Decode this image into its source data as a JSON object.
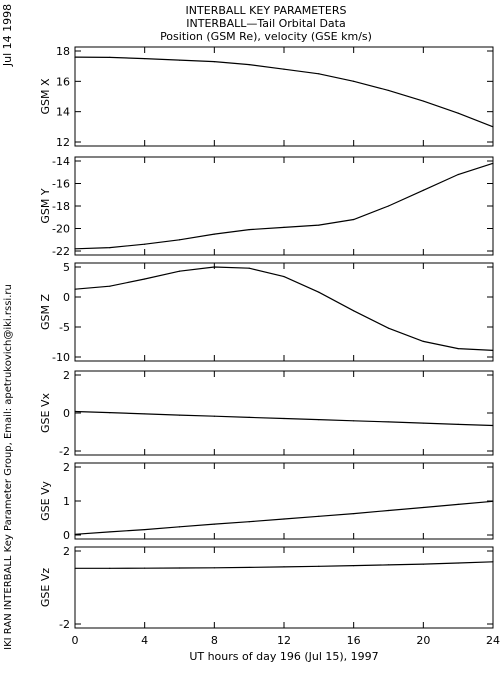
{
  "header": {
    "title_line1": "INTERBALL KEY PARAMETERS",
    "title_line2": "INTERBALL—Tail Orbital Data",
    "title_line3": "Position (GSM Re), velocity (GSE km/s)"
  },
  "side": {
    "date": "Jul 14 1998",
    "credit": "IKI RAN INTERBALL Key Parameter Group, Email: apetrukovich@iki.rssi.ru"
  },
  "chart_data": {
    "type": "line",
    "xlabel": "UT hours of day 196 (Jul 15), 1997",
    "xlim": [
      0,
      24
    ],
    "xticks": [
      0,
      4,
      8,
      12,
      16,
      20,
      24
    ],
    "x": [
      0,
      2,
      4,
      6,
      8,
      10,
      12,
      14,
      16,
      18,
      20,
      22,
      24
    ],
    "panels": [
      {
        "ylabel": "GSM X",
        "ylim": [
          12,
          18
        ],
        "yticks": [
          12,
          14,
          16,
          18
        ],
        "values": [
          17.6,
          17.58,
          17.5,
          17.4,
          17.3,
          17.1,
          16.8,
          16.5,
          16.0,
          15.4,
          14.7,
          13.9,
          13.0
        ]
      },
      {
        "ylabel": "GSM Y",
        "ylim": [
          -22,
          -14
        ],
        "yticks": [
          -22,
          -20,
          -18,
          -16,
          -14
        ],
        "values": [
          -21.8,
          -21.7,
          -21.4,
          -21.0,
          -20.5,
          -20.1,
          -19.9,
          -19.7,
          -19.2,
          -18.0,
          -16.6,
          -15.2,
          -14.2
        ]
      },
      {
        "ylabel": "GSM Z",
        "ylim": [
          -10,
          5
        ],
        "yticks": [
          -10,
          -5,
          0,
          5
        ],
        "values": [
          1.3,
          1.8,
          3.0,
          4.3,
          5.0,
          4.8,
          3.4,
          0.8,
          -2.3,
          -5.2,
          -7.4,
          -8.6,
          -8.9
        ]
      },
      {
        "ylabel": "GSE Vx",
        "ylim": [
          -2,
          2
        ],
        "yticks": [
          -2,
          0,
          2
        ],
        "values": [
          0.08,
          0.02,
          -0.05,
          -0.11,
          -0.17,
          -0.23,
          -0.29,
          -0.35,
          -0.41,
          -0.47,
          -0.53,
          -0.6,
          -0.66
        ]
      },
      {
        "ylabel": "GSE Vy",
        "ylim": [
          0,
          2
        ],
        "yticks": [
          0,
          1,
          2
        ],
        "values": [
          0.02,
          0.09,
          0.16,
          0.24,
          0.32,
          0.39,
          0.47,
          0.55,
          0.63,
          0.72,
          0.81,
          0.9,
          0.99
        ]
      },
      {
        "ylabel": "GSE Vz",
        "ylim": [
          -2,
          2
        ],
        "yticks": [
          -2,
          2
        ],
        "values": [
          1.05,
          1.05,
          1.06,
          1.07,
          1.08,
          1.1,
          1.13,
          1.16,
          1.2,
          1.24,
          1.28,
          1.34,
          1.41
        ]
      }
    ]
  }
}
